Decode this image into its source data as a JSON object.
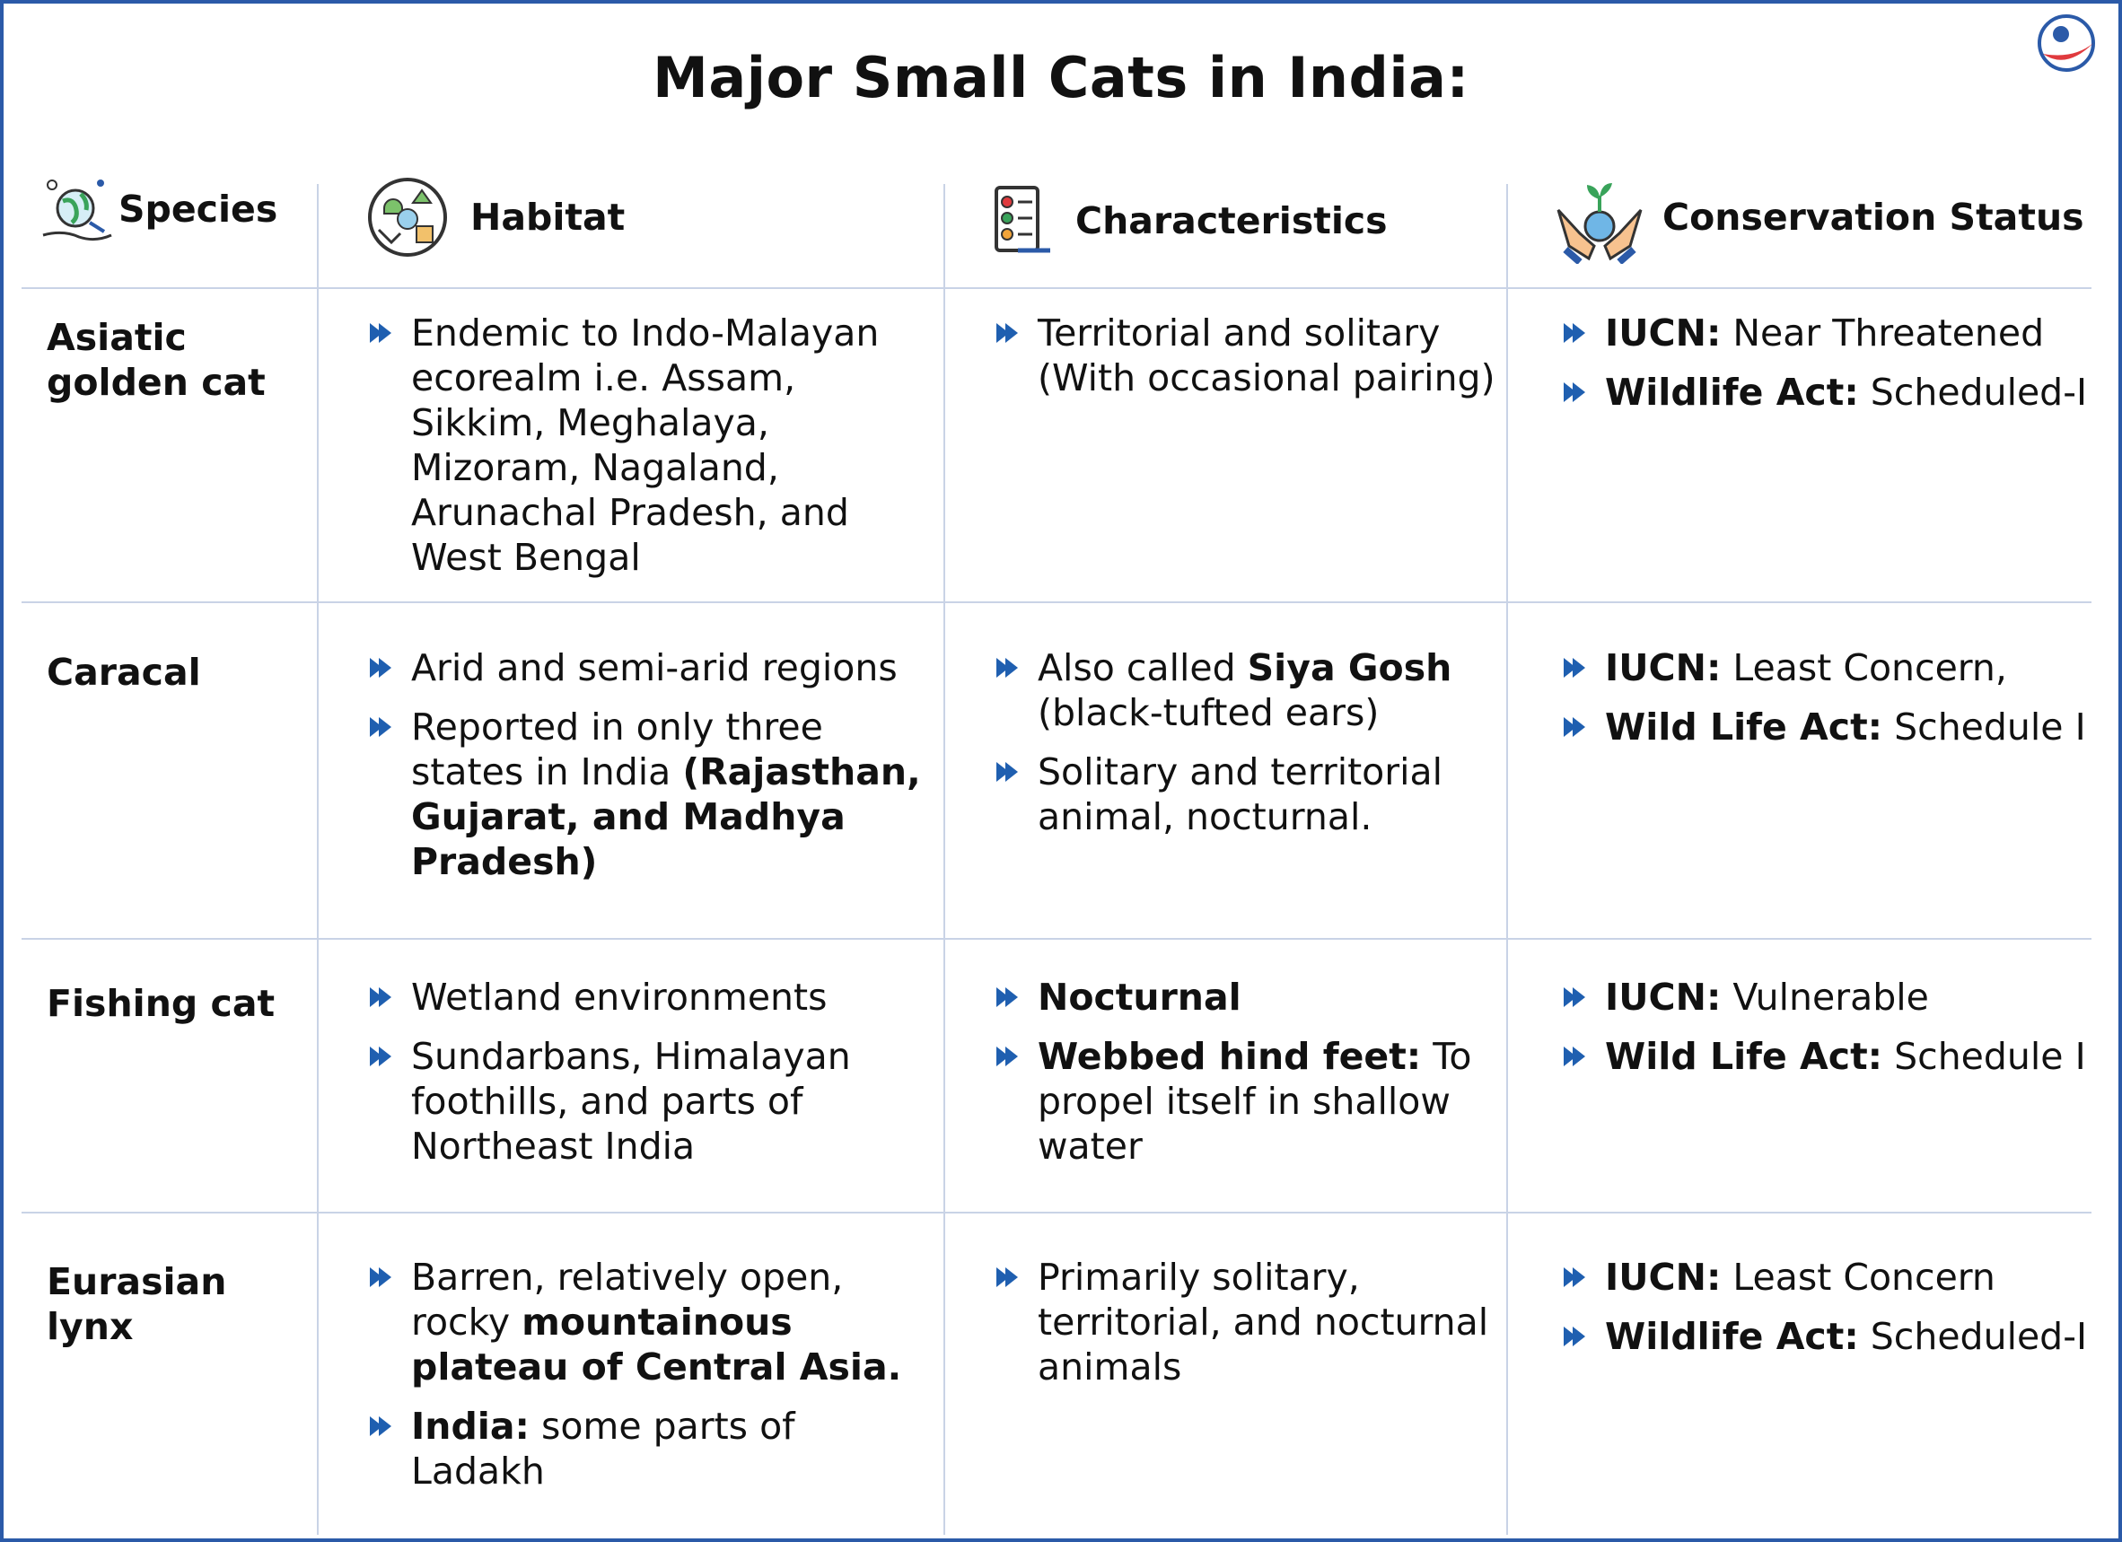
{
  "title": "Major Small Cats in India:",
  "colors": {
    "accent": "#2b5aa8",
    "bullet": "#1f5fb0",
    "grid": "#c9d3e6",
    "logo_red": "#e03a3e"
  },
  "headers": {
    "species": "Species",
    "habitat": "Habitat",
    "characteristics": "Characteristics",
    "conservation": "Conservation Status"
  },
  "header_icons": {
    "species": "globe-icon",
    "habitat": "ecosystem-globe-icon",
    "characteristics": "checklist-icon",
    "conservation": "hands-holding-earth-icon"
  },
  "rows": [
    {
      "species": "Asiatic golden cat",
      "habitat": [
        [
          {
            "t": "Endemic to Indo-Malayan ecorealm i.e. Assam, Sikkim, Meghalaya, Mizoram, Nagaland, Arunachal Pradesh, and West Bengal",
            "b": false
          }
        ]
      ],
      "characteristics": [
        [
          {
            "t": "Territorial and solitary (With occasional pairing)",
            "b": false
          }
        ]
      ],
      "conservation": [
        [
          {
            "t": "IUCN:",
            "b": true
          },
          {
            "t": " Near Threatened",
            "b": false
          }
        ],
        [
          {
            "t": "Wildlife Act:",
            "b": true
          },
          {
            "t": " Scheduled-I",
            "b": false
          }
        ]
      ]
    },
    {
      "species": "Caracal",
      "habitat": [
        [
          {
            "t": "Arid and semi-arid regions",
            "b": false
          }
        ],
        [
          {
            "t": "Reported in only three states in India ",
            "b": false
          },
          {
            "t": "(Rajasthan, Gujarat, and Madhya Pradesh)",
            "b": true
          }
        ]
      ],
      "characteristics": [
        [
          {
            "t": "Also called ",
            "b": false
          },
          {
            "t": "Siya Gosh",
            "b": true
          },
          {
            "t": " (black-tufted ears)",
            "b": false
          }
        ],
        [
          {
            "t": "Solitary and territorial animal, nocturnal.",
            "b": false
          }
        ]
      ],
      "conservation": [
        [
          {
            "t": "IUCN:",
            "b": true
          },
          {
            "t": " Least Concern,",
            "b": false
          }
        ],
        [
          {
            "t": "Wild Life Act:",
            "b": true
          },
          {
            "t": " Schedule I",
            "b": false
          }
        ]
      ]
    },
    {
      "species": "Fishing cat",
      "habitat": [
        [
          {
            "t": "Wetland environments",
            "b": false
          }
        ],
        [
          {
            "t": "Sundarbans, Himalayan foothills, and parts of Northeast India",
            "b": false
          }
        ]
      ],
      "characteristics": [
        [
          {
            "t": "Nocturnal",
            "b": true
          }
        ],
        [
          {
            "t": "Webbed hind feet:",
            "b": true
          },
          {
            "t": " To propel itself in shallow water",
            "b": false
          }
        ]
      ],
      "conservation": [
        [
          {
            "t": "IUCN:",
            "b": true
          },
          {
            "t": " Vulnerable",
            "b": false
          }
        ],
        [
          {
            "t": "Wild Life Act:",
            "b": true
          },
          {
            "t": " Schedule I",
            "b": false
          }
        ]
      ]
    },
    {
      "species": "Eurasian lynx",
      "habitat": [
        [
          {
            "t": "Barren, relatively open, rocky ",
            "b": false
          },
          {
            "t": "mountainous plateau of Central Asia.",
            "b": true
          }
        ],
        [
          {
            "t": "India:",
            "b": true
          },
          {
            "t": " some parts of Ladakh",
            "b": false
          }
        ]
      ],
      "characteristics": [
        [
          {
            "t": "Primarily solitary, territorial, and nocturnal animals",
            "b": false
          }
        ]
      ],
      "conservation": [
        [
          {
            "t": "IUCN:",
            "b": true
          },
          {
            "t": " Least Concern",
            "b": false
          }
        ],
        [
          {
            "t": "Wildlife Act:",
            "b": true
          },
          {
            "t": " Scheduled-I",
            "b": false
          }
        ]
      ]
    }
  ]
}
